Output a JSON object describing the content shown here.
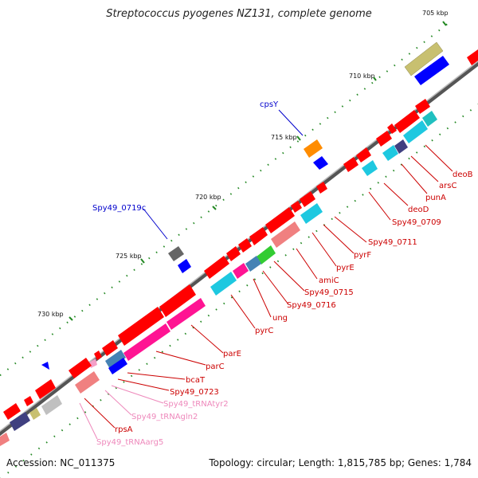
{
  "title": "Streptococcus pyogenes NZ131, complete genome",
  "footer": {
    "accession": "Accession: NC_011375",
    "info": "Topology: circular; Length: 1,815,785 bp; Genes: 1,784"
  },
  "ticks": [
    "705 kbp",
    "710 kbp",
    "715 kbp",
    "720 kbp",
    "725 kbp",
    "730 kbp"
  ],
  "colors": {
    "red": "#ff0000",
    "blue": "#0000ff",
    "cyan": "#1ec8e0",
    "teal": "#20c0c0",
    "pink": "#ff1493",
    "lightpink": "#f08080",
    "olive": "#c8c070",
    "gray": "#666666",
    "silver": "#c0c0c0",
    "navy": "#404080",
    "orange": "#ff8c00",
    "green": "#33cc33",
    "steel": "#4682b4",
    "labelRed": "#cc0000",
    "labelBlue": "#0000cc",
    "labelPink": "#ee88bb",
    "tickGreen": "#228822"
  },
  "labels": {
    "cpsY": "cpsY",
    "spy49_0719c": "Spy49_0719c",
    "deoB": "deoB",
    "arsC": "arsC",
    "punA": "punA",
    "deoD": "deoD",
    "spy49_0709": "Spy49_0709",
    "spy49_0711": "Spy49_0711",
    "pyrF": "pyrF",
    "pyrE": "pyrE",
    "amiC": "amiC",
    "spy49_0715": "Spy49_0715",
    "spy49_0716": "Spy49_0716",
    "ung": "ung",
    "pyrC": "pyrC",
    "parE": "parE",
    "parC": "parC",
    "bcaT": "bcaT",
    "spy49_0723": "Spy49_0723",
    "spy49_tRNAtyr2": "Spy49_tRNAtyr2",
    "spy49_tRNAgln2": "Spy49_tRNAgln2",
    "rpsA": "rpsA",
    "spy49_tRNAarg5": "Spy49_tRNAarg5"
  }
}
